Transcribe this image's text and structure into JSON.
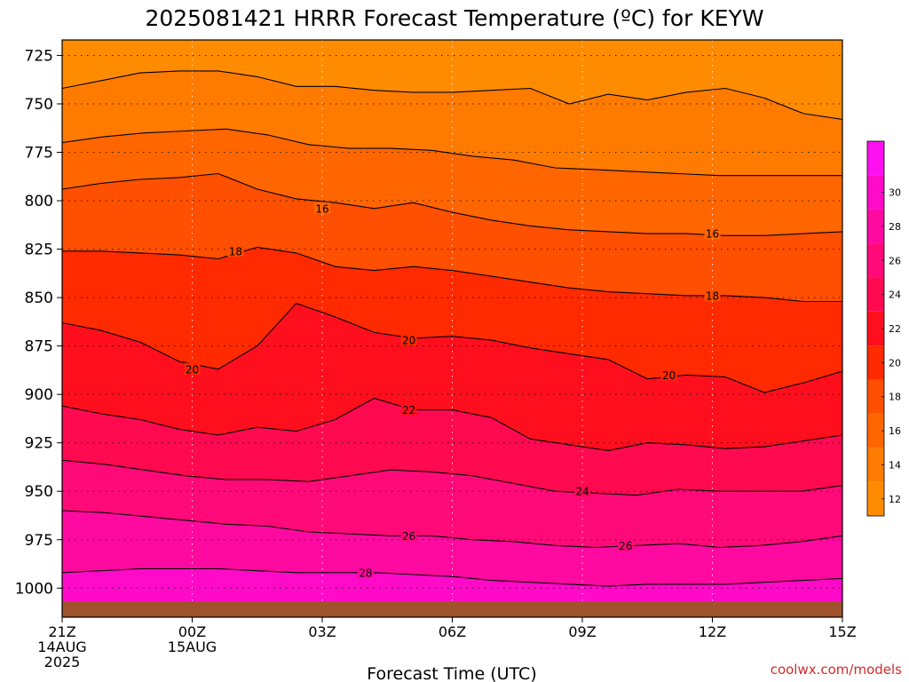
{
  "chart_data": {
    "type": "heatmap",
    "title": "2025081421 HRRR Forecast Temperature (ºC) for KEYW",
    "xlabel": "Forecast Time (UTC)",
    "ylabel": "",
    "credit": "coolwx.com/models",
    "y_scale": "pressure (hPa), increasing downward",
    "ylim": [
      1015,
      717
    ],
    "y_ticks": [
      "725",
      "750",
      "775",
      "800",
      "825",
      "850",
      "875",
      "900",
      "925",
      "950",
      "975",
      "1000"
    ],
    "x_hours": [
      0,
      1,
      2,
      3,
      4,
      5,
      6,
      7,
      8,
      9,
      10,
      11,
      12,
      13,
      14,
      15,
      16,
      17,
      18
    ],
    "x_ticks": [
      {
        "hour": 0,
        "lines": [
          "21Z",
          "14AUG",
          "2025"
        ]
      },
      {
        "hour": 3,
        "lines": [
          "00Z",
          "15AUG"
        ]
      },
      {
        "hour": 6,
        "lines": [
          "03Z"
        ]
      },
      {
        "hour": 9,
        "lines": [
          "06Z"
        ]
      },
      {
        "hour": 12,
        "lines": [
          "09Z"
        ]
      },
      {
        "hour": 15,
        "lines": [
          "12Z"
        ]
      },
      {
        "hour": 18,
        "lines": [
          "15Z"
        ]
      }
    ],
    "grid": true,
    "contours": [
      {
        "level": 12,
        "p": [
          742,
          738,
          734,
          733,
          733,
          736,
          741,
          741,
          743,
          744,
          744,
          743,
          742,
          750,
          745,
          748,
          744,
          742,
          747,
          755,
          758
        ]
      },
      {
        "level": 14,
        "p": [
          770,
          767,
          765,
          764,
          763,
          766,
          771,
          773,
          773,
          774,
          777,
          779,
          783,
          784,
          785,
          786,
          787,
          787,
          787,
          787
        ]
      },
      {
        "level": 16,
        "p": [
          794,
          791,
          789,
          788,
          786,
          794,
          799,
          801,
          804,
          801,
          806,
          810,
          813,
          815,
          816,
          817,
          817,
          818,
          818,
          817,
          816
        ]
      },
      {
        "level": 18,
        "p": [
          826,
          826,
          827,
          828,
          830,
          824,
          827,
          834,
          836,
          834,
          836,
          839,
          842,
          845,
          847,
          848,
          849,
          849,
          850,
          852,
          852
        ]
      },
      {
        "level": 20,
        "p": [
          863,
          867,
          873,
          883,
          887,
          875,
          853,
          860,
          868,
          871,
          870,
          872,
          876,
          879,
          882,
          892,
          890,
          891,
          899,
          894,
          888
        ]
      },
      {
        "level": 22,
        "p": [
          906,
          910,
          913,
          918,
          921,
          917,
          919,
          913,
          902,
          908,
          908,
          912,
          923,
          926,
          929,
          925,
          926,
          928,
          927,
          924,
          921
        ]
      },
      {
        "level": 24,
        "p": [
          934,
          936,
          939,
          942,
          944,
          944,
          945,
          942,
          939,
          940,
          942,
          946,
          950,
          951,
          952,
          949,
          950,
          950,
          950,
          947
        ]
      },
      {
        "level": 26,
        "p": [
          960,
          961,
          963,
          965,
          967,
          968,
          971,
          972,
          973,
          973,
          975,
          976,
          978,
          979,
          978,
          977,
          979,
          978,
          976,
          973
        ]
      },
      {
        "level": 28,
        "p": [
          992,
          991,
          990,
          990,
          990,
          991,
          992,
          992,
          992,
          993,
          994,
          996,
          997,
          998,
          999,
          998,
          998,
          998,
          997,
          996,
          995
        ]
      }
    ],
    "contour_labels": [
      {
        "text": "16",
        "hour": 6.0,
        "p": 804
      },
      {
        "text": "16",
        "hour": 15.0,
        "p": 817
      },
      {
        "text": "18",
        "hour": 4.0,
        "p": 826
      },
      {
        "text": "18",
        "hour": 15.0,
        "p": 849
      },
      {
        "text": "20",
        "hour": 3.0,
        "p": 887
      },
      {
        "text": "20",
        "hour": 8.0,
        "p": 872
      },
      {
        "text": "20",
        "hour": 14.0,
        "p": 890
      },
      {
        "text": "22",
        "hour": 8.0,
        "p": 908
      },
      {
        "text": "24",
        "hour": 12.0,
        "p": 950
      },
      {
        "text": "26",
        "hour": 8.0,
        "p": 973
      },
      {
        "text": "26",
        "hour": 13.0,
        "p": 978
      },
      {
        "text": "28",
        "hour": 7.0,
        "p": 992
      }
    ],
    "surface_color": "#a0522d",
    "colorbar": {
      "min": 11,
      "max": 33,
      "step": 2,
      "labels": [
        "12",
        "14",
        "16",
        "18",
        "20",
        "22",
        "24",
        "26",
        "28",
        "30"
      ],
      "colors": [
        "#ff8c00",
        "#ff7b00",
        "#ff6600",
        "#ff4f00",
        "#ff2a00",
        "#ff0f1e",
        "#ff0a50",
        "#ff0a78",
        "#ff0aa0",
        "#ff0ac8",
        "#ff10f0"
      ]
    }
  }
}
